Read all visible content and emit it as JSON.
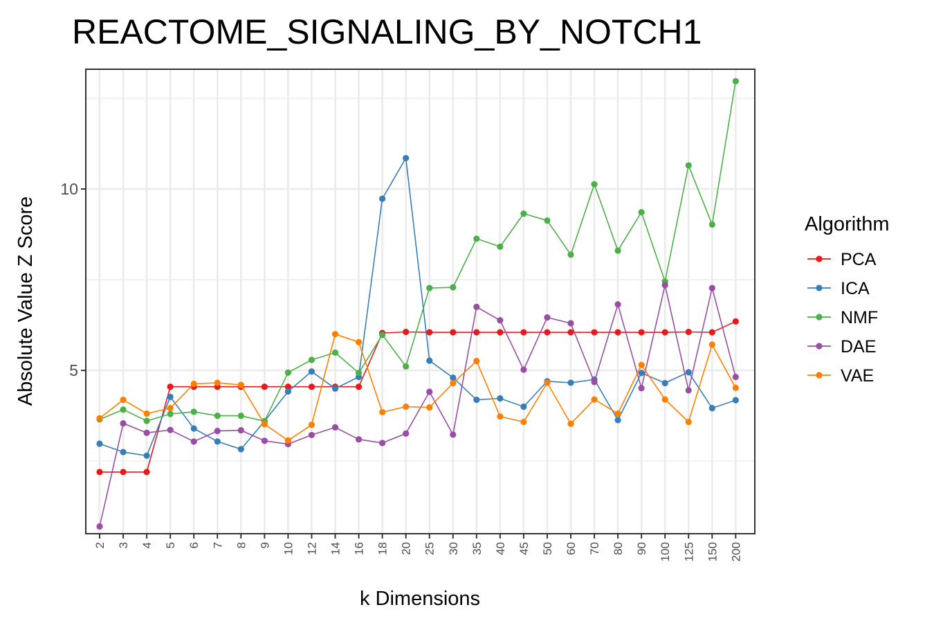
{
  "chart_data": {
    "type": "line",
    "title": "REACTOME_SIGNALING_BY_NOTCH1",
    "xlabel": "k Dimensions",
    "ylabel": "Absolute Value Z Score",
    "categories": [
      "2",
      "3",
      "4",
      "5",
      "6",
      "7",
      "8",
      "9",
      "10",
      "12",
      "14",
      "16",
      "18",
      "20",
      "25",
      "30",
      "35",
      "40",
      "45",
      "50",
      "60",
      "70",
      "80",
      "90",
      "100",
      "125",
      "150",
      "200"
    ],
    "ylim": [
      0.5,
      13.3
    ],
    "yticks": [
      5,
      10
    ],
    "grid": true,
    "legend_title": "Algorithm",
    "legend_position": "right",
    "series": [
      {
        "name": "PCA",
        "color": "#E41A1C",
        "values": [
          2.2,
          2.2,
          2.2,
          4.55,
          4.55,
          4.55,
          4.55,
          4.55,
          4.55,
          4.55,
          4.55,
          4.55,
          6.03,
          6.06,
          6.05,
          6.05,
          6.05,
          6.05,
          6.05,
          6.05,
          6.05,
          6.05,
          6.05,
          6.05,
          6.05,
          6.06,
          6.05,
          6.35
        ]
      },
      {
        "name": "ICA",
        "color": "#377EB8",
        "values": [
          2.98,
          2.75,
          2.65,
          4.27,
          3.4,
          3.04,
          2.83,
          3.6,
          4.42,
          4.97,
          4.5,
          4.82,
          9.73,
          10.85,
          5.27,
          4.8,
          4.19,
          4.23,
          4.0,
          4.7,
          4.66,
          4.75,
          3.63,
          4.93,
          4.65,
          4.95,
          3.96,
          4.18
        ]
      },
      {
        "name": "NMF",
        "color": "#4DAF4A",
        "values": [
          3.65,
          3.92,
          3.61,
          3.8,
          3.86,
          3.75,
          3.75,
          3.6,
          4.94,
          5.29,
          5.49,
          4.93,
          5.98,
          5.11,
          7.27,
          7.29,
          8.63,
          8.41,
          9.32,
          9.13,
          8.19,
          10.13,
          8.3,
          9.36,
          7.45,
          10.65,
          9.02,
          12.97
        ]
      },
      {
        "name": "DAE",
        "color": "#984EA3",
        "values": [
          0.7,
          3.54,
          3.28,
          3.36,
          3.04,
          3.33,
          3.35,
          3.06,
          2.97,
          3.22,
          3.43,
          3.1,
          3.0,
          3.26,
          4.41,
          3.23,
          6.75,
          6.38,
          5.02,
          6.46,
          6.3,
          4.68,
          6.82,
          4.51,
          7.35,
          4.45,
          7.27,
          4.82
        ]
      },
      {
        "name": "VAE",
        "color": "#FF7F00",
        "values": [
          3.68,
          4.19,
          3.81,
          3.96,
          4.63,
          4.66,
          4.6,
          3.52,
          3.07,
          3.5,
          6.0,
          5.78,
          3.85,
          4.0,
          3.98,
          4.65,
          5.26,
          3.73,
          3.58,
          4.66,
          3.53,
          4.2,
          3.81,
          5.15,
          4.2,
          3.58,
          5.71,
          4.52
        ]
      }
    ]
  }
}
